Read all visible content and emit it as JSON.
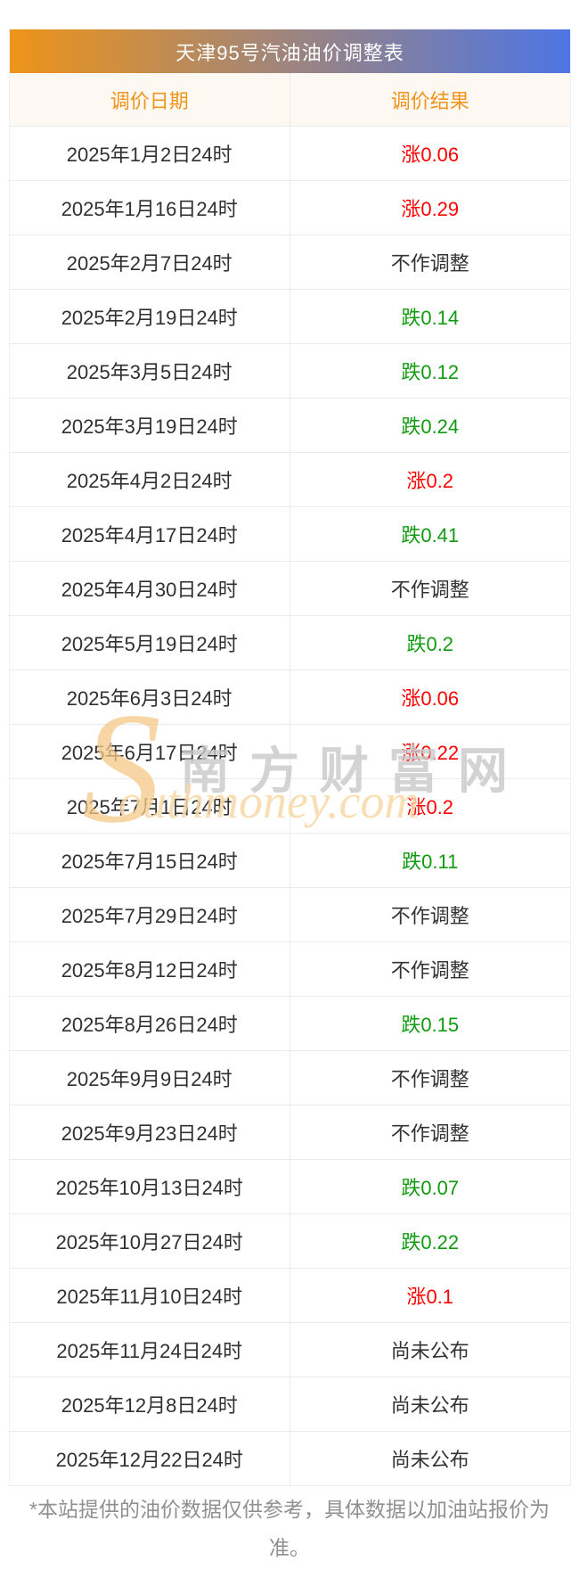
{
  "title": "天津95号汽油油价调整表",
  "columns": {
    "date": "调价日期",
    "result": "调价结果"
  },
  "rows": [
    {
      "date": "2025年1月2日24时",
      "result": "涨0.06",
      "type": "up"
    },
    {
      "date": "2025年1月16日24时",
      "result": "涨0.29",
      "type": "up"
    },
    {
      "date": "2025年2月7日24时",
      "result": "不作调整",
      "type": "none"
    },
    {
      "date": "2025年2月19日24时",
      "result": "跌0.14",
      "type": "down"
    },
    {
      "date": "2025年3月5日24时",
      "result": "跌0.12",
      "type": "down"
    },
    {
      "date": "2025年3月19日24时",
      "result": "跌0.24",
      "type": "down"
    },
    {
      "date": "2025年4月2日24时",
      "result": "涨0.2",
      "type": "up"
    },
    {
      "date": "2025年4月17日24时",
      "result": "跌0.41",
      "type": "down"
    },
    {
      "date": "2025年4月30日24时",
      "result": "不作调整",
      "type": "none"
    },
    {
      "date": "2025年5月19日24时",
      "result": "跌0.2",
      "type": "down"
    },
    {
      "date": "2025年6月3日24时",
      "result": "涨0.06",
      "type": "up"
    },
    {
      "date": "2025年6月17日24时",
      "result": "涨0.22",
      "type": "up"
    },
    {
      "date": "2025年7月1日24时",
      "result": "涨0.2",
      "type": "up"
    },
    {
      "date": "2025年7月15日24时",
      "result": "跌0.11",
      "type": "down"
    },
    {
      "date": "2025年7月29日24时",
      "result": "不作调整",
      "type": "none"
    },
    {
      "date": "2025年8月12日24时",
      "result": "不作调整",
      "type": "none"
    },
    {
      "date": "2025年8月26日24时",
      "result": "跌0.15",
      "type": "down"
    },
    {
      "date": "2025年9月9日24时",
      "result": "不作调整",
      "type": "none"
    },
    {
      "date": "2025年9月23日24时",
      "result": "不作调整",
      "type": "none"
    },
    {
      "date": "2025年10月13日24时",
      "result": "跌0.07",
      "type": "down"
    },
    {
      "date": "2025年10月27日24时",
      "result": "跌0.22",
      "type": "down"
    },
    {
      "date": "2025年11月10日24时",
      "result": "涨0.1",
      "type": "up"
    },
    {
      "date": "2025年11月24日24时",
      "result": "尚未公布",
      "type": "none"
    },
    {
      "date": "2025年12月8日24时",
      "result": "尚未公布",
      "type": "none"
    },
    {
      "date": "2025年12月22日24时",
      "result": "尚未公布",
      "type": "none"
    }
  ],
  "watermark": {
    "initial": "S",
    "cn": "南方财富网",
    "en": "outhmoney.com"
  },
  "footer": "*本站提供的油价数据仅供参考，具体数据以加油站报价为准。",
  "colors": {
    "title_gradient_start": "#ee9418",
    "title_gradient_end": "#4d75e4",
    "header_bg": "#fdf8f1",
    "header_text": "#f0941c",
    "rise_red": "#fe0000",
    "fall_green": "#119b10",
    "border": "#e7eaf0",
    "footer_gray": "#909090"
  }
}
